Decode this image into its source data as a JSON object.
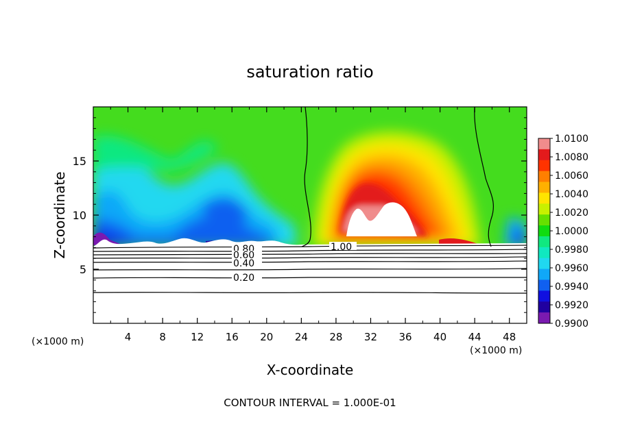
{
  "chart_data": {
    "type": "heatmap",
    "title": "saturation ratio",
    "xlabel": "X-coordinate",
    "ylabel": "Z-coordinate",
    "x_unit_label_left": "(×1000 m)",
    "x_unit_label_right": "(×1000 m)",
    "xlim": [
      0,
      50
    ],
    "ylim": [
      0,
      20
    ],
    "x_ticks": [
      4,
      8,
      12,
      16,
      20,
      24,
      28,
      32,
      36,
      40,
      44,
      48
    ],
    "x_tick_labels": [
      "4",
      "8",
      "12",
      "16",
      "20",
      "24",
      "28",
      "32",
      "36",
      "40",
      "44",
      "48"
    ],
    "y_ticks": [
      5,
      10,
      15
    ],
    "y_tick_labels": [
      "5",
      "10",
      "15"
    ],
    "footer": "CONTOUR INTERVAL = 1.000E-01",
    "colorbar": {
      "min": 0.99,
      "max": 1.01,
      "labels": [
        "1.0100",
        "1.0080",
        "1.0060",
        "1.0040",
        "1.0020",
        "1.0000",
        "0.9980",
        "0.9960",
        "0.9940",
        "0.9920",
        "0.9900"
      ],
      "colors": [
        "#f08c8c",
        "#e31a1c",
        "#ff3300",
        "#ff7f00",
        "#ffb000",
        "#ffe400",
        "#c8f000",
        "#66e000",
        "#10dc10",
        "#10e880",
        "#10e8c0",
        "#20d8f0",
        "#10a8f8",
        "#1060f0",
        "#1010e0",
        "#2000a0",
        "#7a1ab0"
      ]
    },
    "contour_labels": [
      "0.80",
      "0.60",
      "0.40",
      "0.20",
      "1.00"
    ],
    "contour_levels": [
      0.2,
      0.4,
      0.6,
      0.8,
      1.0
    ]
  }
}
